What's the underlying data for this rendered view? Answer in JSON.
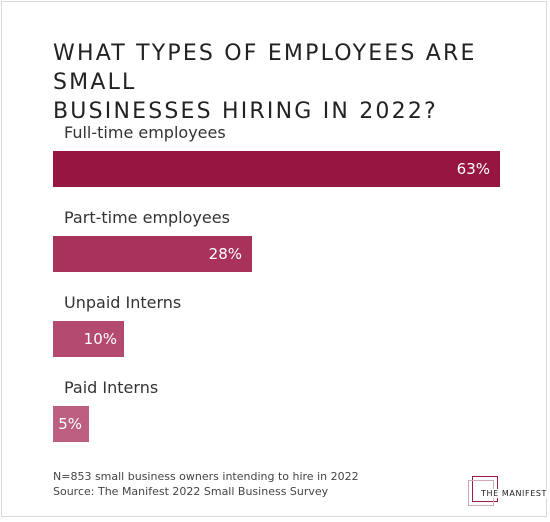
{
  "chart_data": {
    "type": "bar",
    "orientation": "horizontal",
    "title": "WHAT TYPES OF EMPLOYEES ARE SMALL\nBUSINESSES HIRING IN 2022?",
    "categories": [
      "Full-time employees",
      "Part-time employees",
      "Unpaid Interns",
      "Paid Interns"
    ],
    "values": [
      63,
      28,
      10,
      5
    ],
    "value_labels": [
      "63%",
      "28%",
      "10%",
      "5%"
    ],
    "unit": "%",
    "xlim": [
      0,
      63
    ],
    "grid": false,
    "legend": "none",
    "colors": [
      "#961541",
      "#a8325c",
      "#b54a70",
      "#bd5f80"
    ]
  },
  "footnote": {
    "line1": "N=853 small business owners intending to hire in 2022",
    "line2": "Source: The Manifest 2022 Small Business Survey"
  },
  "logo": {
    "text": "THE MANIFEST",
    "colors": [
      "#9c1a44",
      "#d3a9b6"
    ]
  }
}
